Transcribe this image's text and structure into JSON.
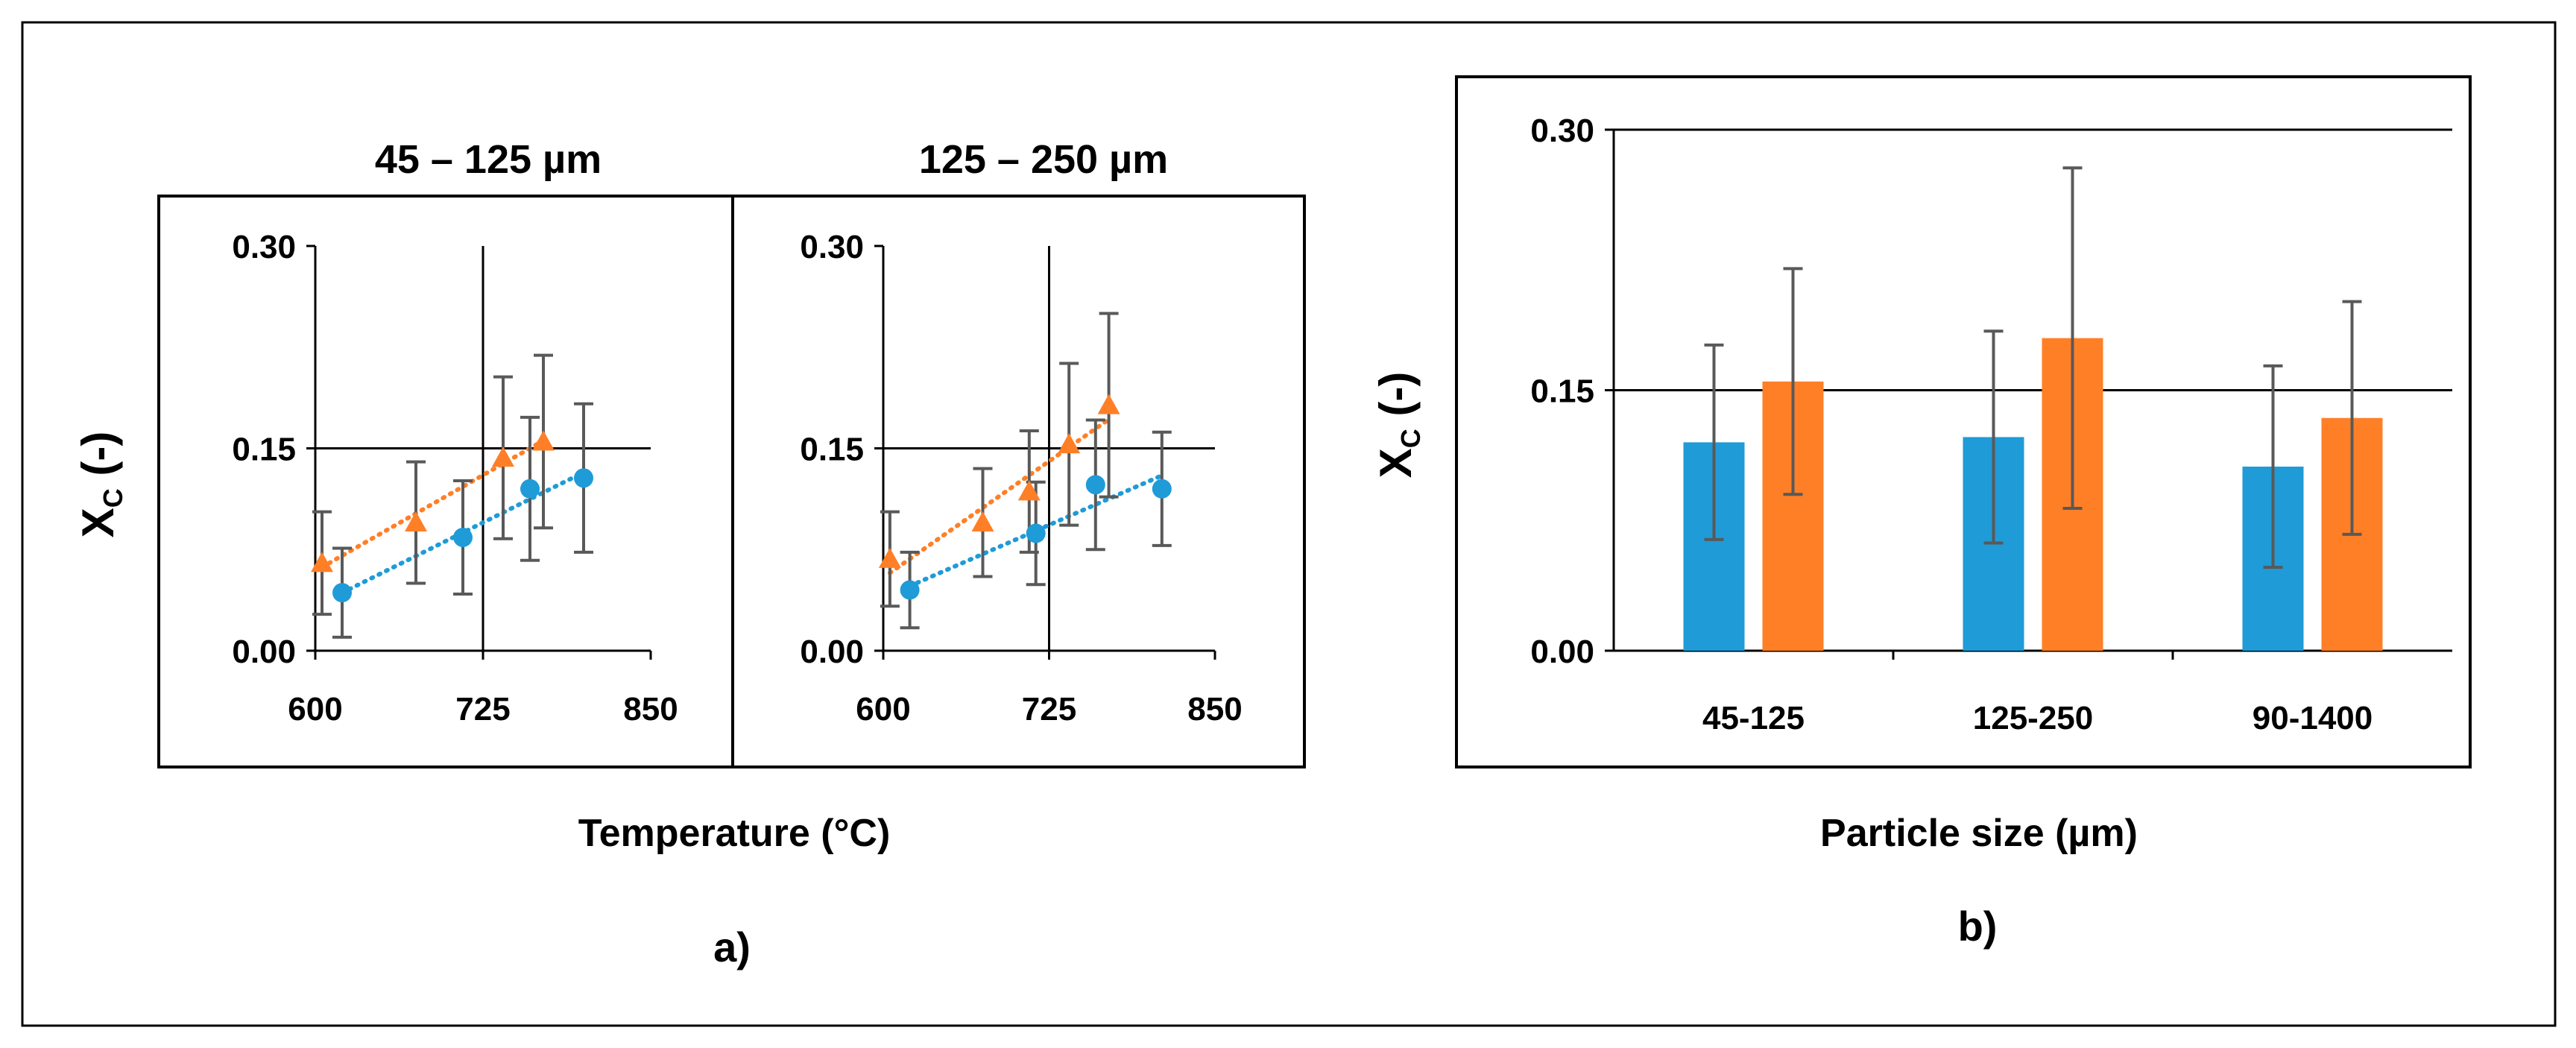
{
  "colors": {
    "blue": "#1F9BD7",
    "orange": "#FF7F27",
    "errorbar": "#595959",
    "axis": "#000000"
  },
  "labels": {
    "a_panel": "a)",
    "b_panel": "b)",
    "a_xlabel": "Temperature (°C)",
    "b_xlabel": "Particle size (µm)",
    "ylabel_main": "X",
    "ylabel_sub": "C",
    "ylabel_rest": " (-)"
  },
  "chart_data": [
    {
      "type": "scatter",
      "title": "45 – 125 µm",
      "xlabel": "Temperature (°C)",
      "ylabel": "XC (-)",
      "xlim": [
        600,
        850
      ],
      "ylim": [
        0,
        0.3
      ],
      "xticks": [
        "600",
        "725",
        "850"
      ],
      "yticks": [
        "0.00",
        "0.15",
        "0.30"
      ],
      "trendline": "linear, dotted",
      "series": [
        {
          "name": "circles",
          "marker": "circle",
          "color": "#1F9BD7",
          "x": [
            620,
            710,
            760,
            800
          ],
          "y": [
            0.043,
            0.084,
            0.12,
            0.128
          ],
          "err": [
            0.033,
            0.042,
            0.053,
            0.055
          ]
        },
        {
          "name": "triangles",
          "marker": "triangle",
          "color": "#FF7F27",
          "x": [
            605,
            675,
            740,
            770
          ],
          "y": [
            0.065,
            0.095,
            0.143,
            0.155
          ],
          "err": [
            0.038,
            0.045,
            0.06,
            0.064
          ]
        }
      ]
    },
    {
      "type": "scatter",
      "title": "125 – 250 µm",
      "xlabel": "Temperature (°C)",
      "ylabel": "XC (-)",
      "xlim": [
        600,
        850
      ],
      "ylim": [
        0,
        0.3
      ],
      "xticks": [
        "600",
        "725",
        "850"
      ],
      "yticks": [
        "0.00",
        "0.15",
        "0.30"
      ],
      "trendline": "linear, dotted",
      "series": [
        {
          "name": "circles",
          "marker": "circle",
          "color": "#1F9BD7",
          "x": [
            620,
            715,
            760,
            810
          ],
          "y": [
            0.045,
            0.087,
            0.123,
            0.12
          ],
          "err": [
            0.028,
            0.038,
            0.048,
            0.042
          ]
        },
        {
          "name": "triangles",
          "marker": "triangle",
          "color": "#FF7F27",
          "x": [
            605,
            675,
            710,
            740,
            770
          ],
          "y": [
            0.068,
            0.095,
            0.118,
            0.153,
            0.182
          ],
          "err": [
            0.035,
            0.04,
            0.045,
            0.06,
            0.068
          ]
        }
      ]
    },
    {
      "type": "bar",
      "xlabel": "Particle size (µm)",
      "ylabel": "XC (-)",
      "ylim": [
        0,
        0.3
      ],
      "yticks": [
        "0.00",
        "0.15",
        "0.30"
      ],
      "categories": [
        "45-125",
        "125-250",
        "90-1400"
      ],
      "series": [
        {
          "name": "blue",
          "color": "#1F9BD7",
          "values": [
            0.12,
            0.123,
            0.106
          ],
          "err": [
            0.056,
            0.061,
            0.058
          ]
        },
        {
          "name": "orange",
          "color": "#FF7F27",
          "values": [
            0.155,
            0.18,
            0.134
          ],
          "err": [
            0.065,
            0.098,
            0.067
          ]
        }
      ]
    }
  ]
}
